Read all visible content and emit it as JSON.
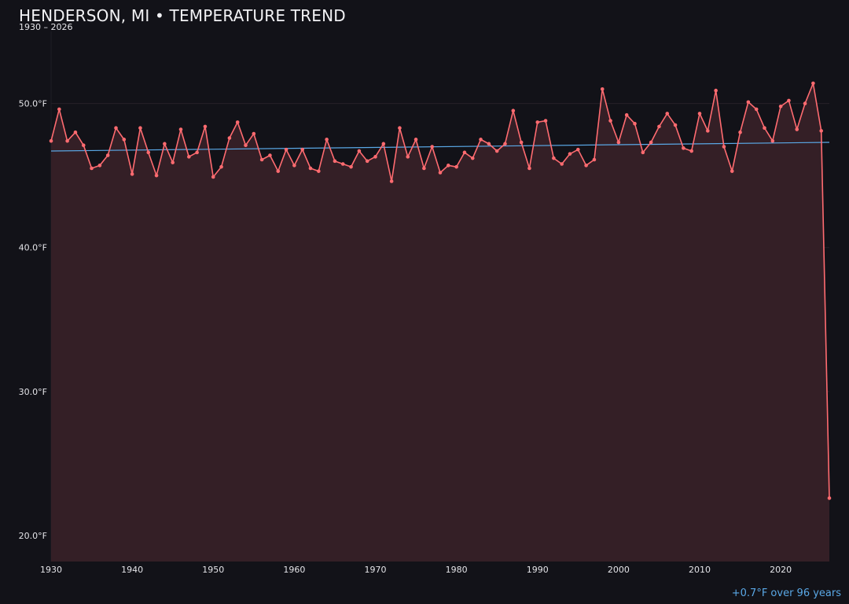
{
  "header": {
    "title": "HENDERSON, MI • TEMPERATURE TREND",
    "subtitle": "1930 – 2026"
  },
  "footnote": "+0.7°F over 96 years",
  "colors": {
    "background": "#121218",
    "line": "#ff6b70",
    "area_fill": "#341f26",
    "trend": "#5aa8e6",
    "grid": "#262129"
  },
  "chart_data": {
    "type": "line",
    "x": [
      1930,
      1931,
      1932,
      1933,
      1934,
      1935,
      1936,
      1937,
      1938,
      1939,
      1940,
      1941,
      1942,
      1943,
      1944,
      1945,
      1946,
      1947,
      1948,
      1949,
      1950,
      1951,
      1952,
      1953,
      1954,
      1955,
      1956,
      1957,
      1958,
      1959,
      1960,
      1961,
      1962,
      1963,
      1964,
      1965,
      1966,
      1967,
      1968,
      1969,
      1970,
      1971,
      1972,
      1973,
      1974,
      1975,
      1976,
      1977,
      1978,
      1979,
      1980,
      1981,
      1982,
      1983,
      1984,
      1985,
      1986,
      1987,
      1988,
      1989,
      1990,
      1991,
      1992,
      1993,
      1994,
      1995,
      1996,
      1997,
      1998,
      1999,
      2000,
      2001,
      2002,
      2003,
      2004,
      2005,
      2006,
      2007,
      2008,
      2009,
      2010,
      2011,
      2012,
      2013,
      2014,
      2015,
      2016,
      2017,
      2018,
      2019,
      2020,
      2021,
      2022,
      2023,
      2024,
      2025,
      2026
    ],
    "series": [
      {
        "values": [
          47.4,
          49.6,
          47.4,
          48.0,
          47.1,
          45.5,
          45.7,
          46.4,
          48.3,
          47.5,
          45.1,
          48.3,
          46.6,
          45.0,
          47.2,
          45.9,
          48.2,
          46.3,
          46.6,
          48.4,
          44.9,
          45.6,
          47.6,
          48.7,
          47.1,
          47.9,
          46.1,
          46.4,
          45.3,
          46.8,
          45.7,
          46.8,
          45.5,
          45.3,
          47.5,
          46.0,
          45.8,
          45.6,
          46.7,
          46.0,
          46.3,
          47.2,
          44.6,
          48.3,
          46.3,
          47.5,
          45.5,
          47.0,
          45.2,
          45.7,
          45.6,
          46.6,
          46.2,
          47.5,
          47.2,
          46.7,
          47.2,
          49.5,
          47.3,
          45.5,
          48.7,
          48.8,
          46.2,
          45.8,
          46.5,
          46.8,
          45.7,
          46.1,
          51.0,
          48.8,
          47.3,
          49.2,
          48.6,
          46.6,
          47.3,
          48.4,
          49.3,
          48.5,
          46.9,
          46.7,
          49.3,
          48.1,
          50.9,
          47.0,
          45.3,
          48.0,
          50.1,
          49.6,
          48.3,
          47.4,
          49.8,
          50.2,
          48.2,
          50.0,
          51.4,
          48.1,
          22.6
        ]
      }
    ],
    "trend": {
      "start": [
        1930,
        46.7
      ],
      "end": [
        2026,
        47.3
      ]
    },
    "xlim": [
      1930,
      2026
    ],
    "ylim": [
      18.2,
      55.0
    ],
    "x_ticks": [
      1930,
      1940,
      1950,
      1960,
      1970,
      1980,
      1990,
      2000,
      2010,
      2020
    ],
    "x_tick_labels": [
      "1930",
      "1940",
      "1950",
      "1960",
      "1970",
      "1980",
      "1990",
      "2000",
      "2010",
      "2020"
    ],
    "y_ticks": [
      20,
      30,
      40,
      50
    ],
    "y_tick_labels": [
      "20.0°F",
      "30.0°F",
      "40.0°F",
      "50.0°F"
    ],
    "grid": true,
    "legend": "none"
  }
}
